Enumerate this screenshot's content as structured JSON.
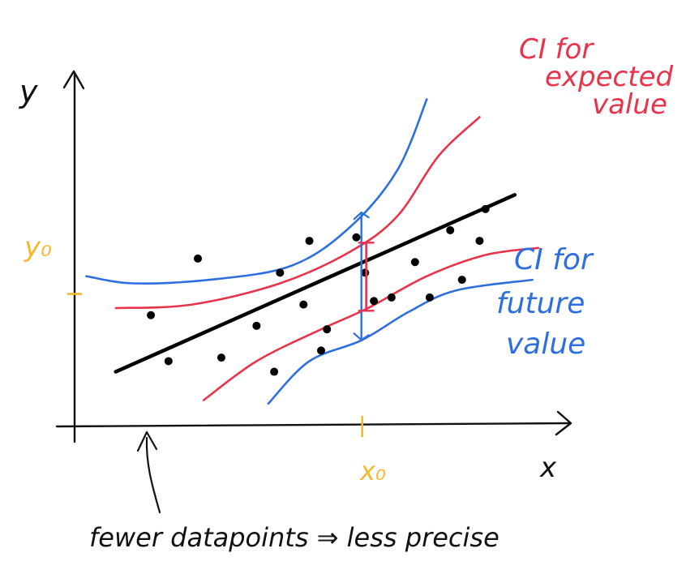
{
  "labels": {
    "y_axis": "y",
    "x_axis": "x",
    "y0": "y₀",
    "x0": "x₀",
    "ci_expected": [
      "CI for",
      "expected",
      "value"
    ],
    "ci_future": [
      "CI for",
      "future",
      "value"
    ],
    "footnote": "fewer datapoints ⇒ less precise"
  },
  "colors": {
    "axis": "#111111",
    "regression_line": "#000000",
    "points": "#000000",
    "ci_expected": "#e8334a",
    "ci_future": "#2e6fe0",
    "marker": "#f5b82e"
  },
  "chart_data": {
    "type": "scatter",
    "x": [
      0.8,
      1.1,
      1.6,
      2.0,
      2.6,
      2.9,
      3.0,
      3.4,
      3.5,
      3.7,
      3.8,
      4.3,
      4.45,
      4.6,
      4.9,
      5.3,
      5.55,
      5.9,
      6.1,
      6.4,
      6.5
    ],
    "y": [
      2.9,
      1.6,
      4.5,
      1.7,
      2.6,
      1.3,
      4.1,
      3.2,
      5.0,
      1.9,
      2.5,
      5.1,
      4.1,
      3.3,
      3.4,
      4.4,
      3.4,
      5.3,
      3.9,
      5.0,
      5.9
    ],
    "regression_line": {
      "x": [
        0.2,
        7.0
      ],
      "y": [
        1.3,
        6.3
      ]
    },
    "ci_expected_value": {
      "upper": {
        "x": [
          0.2,
          1.5,
          3.0,
          4.2,
          5.0,
          5.7,
          6.4
        ],
        "y": [
          3.1,
          3.2,
          3.8,
          4.7,
          5.7,
          7.4,
          8.5
        ]
      },
      "lower": {
        "x": [
          1.7,
          2.6,
          3.7,
          4.5,
          5.5,
          6.5,
          7.4
        ],
        "y": [
          0.5,
          1.6,
          2.5,
          3.1,
          4.0,
          4.6,
          4.8
        ]
      }
    },
    "ci_future_value": {
      "upper": {
        "x": [
          -0.3,
          0.5,
          1.8,
          3.2,
          4.2,
          5.0,
          5.5
        ],
        "y": [
          4.0,
          3.8,
          3.9,
          4.3,
          5.4,
          7.0,
          9.0
        ]
      },
      "lower": {
        "x": [
          2.8,
          3.5,
          4.4,
          5.2,
          6.0,
          7.3
        ],
        "y": [
          0.4,
          1.6,
          2.2,
          3.0,
          3.6,
          3.9
        ]
      }
    },
    "marker_x0": 4.4,
    "marker_y0": 3.5,
    "xlim": [
      -0.5,
      7.9
    ],
    "ylim": [
      -0.2,
      9.7
    ]
  }
}
